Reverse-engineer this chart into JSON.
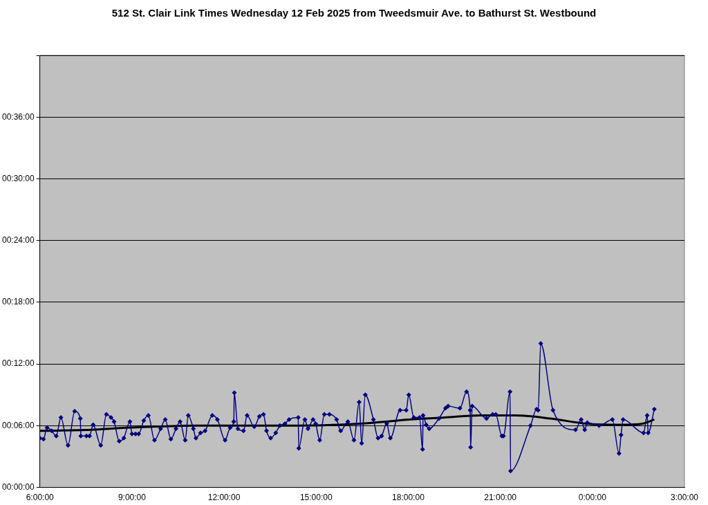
{
  "chart_data": {
    "type": "line",
    "title": "512 St. Clair Link Times Wednesday 12 Feb 2025 from Tweedsmuir Ave. to Bathurst St. Westbound",
    "xlim": [
      "2025-02-12T06:00",
      "2025-02-13T03:00"
    ],
    "xticks": [
      {
        "value": "2025-02-12T06:00",
        "label": "6:00:00"
      },
      {
        "value": "2025-02-12T09:00",
        "label": "9:00:00"
      },
      {
        "value": "2025-02-12T12:00",
        "label": "12:00:00"
      },
      {
        "value": "2025-02-12T15:00",
        "label": "15:00:00"
      },
      {
        "value": "2025-02-12T18:00",
        "label": "18:00:00"
      },
      {
        "value": "2025-02-12T21:00",
        "label": "21:00:00"
      },
      {
        "value": "2025-02-13T00:00",
        "label": "0:00:00"
      },
      {
        "value": "2025-02-13T03:00",
        "label": "3:00:00"
      }
    ],
    "ylim": [
      0,
      42
    ],
    "yticks": [
      {
        "value": 0,
        "label": "00:00:00"
      },
      {
        "value": 6,
        "label": "00:06:00"
      },
      {
        "value": 12,
        "label": "00:12:00"
      },
      {
        "value": 18,
        "label": "00:18:00"
      },
      {
        "value": 24,
        "label": "00:24:00"
      },
      {
        "value": 30,
        "label": "00:30:00"
      },
      {
        "value": 36,
        "label": "00:36:00"
      },
      {
        "value": 42,
        "label": null
      }
    ],
    "grid": "y",
    "legend": false,
    "marker": "diamond",
    "line_style": "solid",
    "series": [
      {
        "color": "#000080",
        "x": [
          "2025-02-12T06:00",
          "2025-02-12T06:07",
          "2025-02-12T06:14",
          "2025-02-12T06:23",
          "2025-02-12T06:32",
          "2025-02-12T06:41",
          "2025-02-12T06:55",
          "2025-02-12T07:08",
          "2025-02-12T07:19",
          "2025-02-12T07:20",
          "2025-02-12T07:31",
          "2025-02-12T07:37",
          "2025-02-12T07:44",
          "2025-02-12T07:59",
          "2025-02-12T08:10",
          "2025-02-12T08:19",
          "2025-02-12T08:25",
          "2025-02-12T08:35",
          "2025-02-12T08:44",
          "2025-02-12T08:56",
          "2025-02-12T09:00",
          "2025-02-12T09:07",
          "2025-02-12T09:13",
          "2025-02-12T09:23",
          "2025-02-12T09:32",
          "2025-02-12T09:44",
          "2025-02-12T09:56",
          "2025-02-12T10:05",
          "2025-02-12T10:16",
          "2025-02-12T10:26",
          "2025-02-12T10:34",
          "2025-02-12T10:44",
          "2025-02-12T10:50",
          "2025-02-12T11:00",
          "2025-02-12T11:05",
          "2025-02-12T11:14",
          "2025-02-12T11:23",
          "2025-02-12T11:37",
          "2025-02-12T11:47",
          "2025-02-12T12:02",
          "2025-02-12T12:12",
          "2025-02-12T12:19",
          "2025-02-12T12:20",
          "2025-02-12T12:27",
          "2025-02-12T12:38",
          "2025-02-12T12:45",
          "2025-02-12T12:59",
          "2025-02-12T13:09",
          "2025-02-12T13:17",
          "2025-02-12T13:23",
          "2025-02-12T13:31",
          "2025-02-12T13:41",
          "2025-02-12T13:49",
          "2025-02-12T13:59",
          "2025-02-12T14:07",
          "2025-02-12T14:25",
          "2025-02-12T14:26",
          "2025-02-12T14:38",
          "2025-02-12T14:44",
          "2025-02-12T14:54",
          "2025-02-12T14:59",
          "2025-02-12T15:07",
          "2025-02-12T15:16",
          "2025-02-12T15:26",
          "2025-02-12T15:40",
          "2025-02-12T15:48",
          "2025-02-12T16:02",
          "2025-02-12T16:14",
          "2025-02-12T16:24",
          "2025-02-12T16:29",
          "2025-02-12T16:36",
          "2025-02-12T16:52",
          "2025-02-12T17:01",
          "2025-02-12T17:08",
          "2025-02-12T17:18",
          "2025-02-12T17:25",
          "2025-02-12T17:44",
          "2025-02-12T17:56",
          "2025-02-12T18:01",
          "2025-02-12T18:11",
          "2025-02-12T18:22",
          "2025-02-12T18:28",
          "2025-02-12T18:29",
          "2025-02-12T18:35",
          "2025-02-12T18:41",
          "2025-02-12T19:00",
          "2025-02-12T19:13",
          "2025-02-12T19:18",
          "2025-02-12T19:41",
          "2025-02-12T19:54",
          "2025-02-12T20:01",
          "2025-02-12T20:02",
          "2025-02-12T20:05",
          "2025-02-12T20:33",
          "2025-02-12T20:45",
          "2025-02-12T20:51",
          "2025-02-12T21:03",
          "2025-02-12T21:06",
          "2025-02-12T21:19",
          "2025-02-12T21:20",
          "2025-02-12T21:59",
          "2025-02-12T22:11",
          "2025-02-12T22:14",
          "2025-02-12T22:19",
          "2025-02-12T22:43",
          "2025-02-12T23:27",
          "2025-02-12T23:38",
          "2025-02-12T23:45",
          "2025-02-12T23:50",
          "2025-02-13T00:13",
          "2025-02-13T00:39",
          "2025-02-13T00:52",
          "2025-02-13T00:56",
          "2025-02-13T01:00",
          "2025-02-13T01:40",
          "2025-02-13T01:47",
          "2025-02-13T01:49",
          "2025-02-13T02:01"
        ],
        "values": [
          4.8,
          4.7,
          5.8,
          5.5,
          5.0,
          6.8,
          4.1,
          7.4,
          6.7,
          5.0,
          5.0,
          5.0,
          6.1,
          4.1,
          7.1,
          6.8,
          6.4,
          4.5,
          4.8,
          6.4,
          5.2,
          5.2,
          5.2,
          6.5,
          7.0,
          4.6,
          5.7,
          6.6,
          4.7,
          5.7,
          6.4,
          4.6,
          7.0,
          5.7,
          4.8,
          5.3,
          5.5,
          7.0,
          6.6,
          4.6,
          5.8,
          6.4,
          9.2,
          5.7,
          5.5,
          7.0,
          5.9,
          6.9,
          7.1,
          5.5,
          4.8,
          5.3,
          6.0,
          6.2,
          6.6,
          6.8,
          3.8,
          6.6,
          5.7,
          6.6,
          6.2,
          4.6,
          7.1,
          7.1,
          6.6,
          5.5,
          6.4,
          4.6,
          8.3,
          4.3,
          9.0,
          6.6,
          4.8,
          5.0,
          6.2,
          4.8,
          7.5,
          7.5,
          9.0,
          6.8,
          6.8,
          3.7,
          7.0,
          6.1,
          5.7,
          6.7,
          7.7,
          7.9,
          7.7,
          9.3,
          7.5,
          3.9,
          7.9,
          6.7,
          7.1,
          7.1,
          5.0,
          5.0,
          9.3,
          1.6,
          6.0,
          7.6,
          7.5,
          14.0,
          7.5,
          5.6,
          6.6,
          5.6,
          6.3,
          6.0,
          6.6,
          3.3,
          5.1,
          6.6,
          5.3,
          7.0,
          5.3,
          7.6
        ]
      },
      {
        "color": "#000000",
        "marker": "none",
        "x": [
          "2025-02-12T06:00",
          "2025-02-12T07:40",
          "2025-02-12T08:49",
          "2025-02-12T11:07",
          "2025-02-12T13:25",
          "2025-02-12T15:44",
          "2025-02-12T16:53",
          "2025-02-12T18:02",
          "2025-02-12T19:11",
          "2025-02-12T20:20",
          "2025-02-12T21:29",
          "2025-02-12T22:38",
          "2025-02-12T23:48",
          "2025-02-13T00:57",
          "2025-02-13T01:38",
          "2025-02-13T02:01"
        ],
        "values": [
          5.5,
          5.6,
          5.8,
          6.0,
          6.0,
          6.1,
          6.3,
          6.6,
          6.8,
          7.0,
          7.0,
          6.7,
          6.2,
          6.1,
          6.2,
          6.6
        ]
      }
    ]
  }
}
